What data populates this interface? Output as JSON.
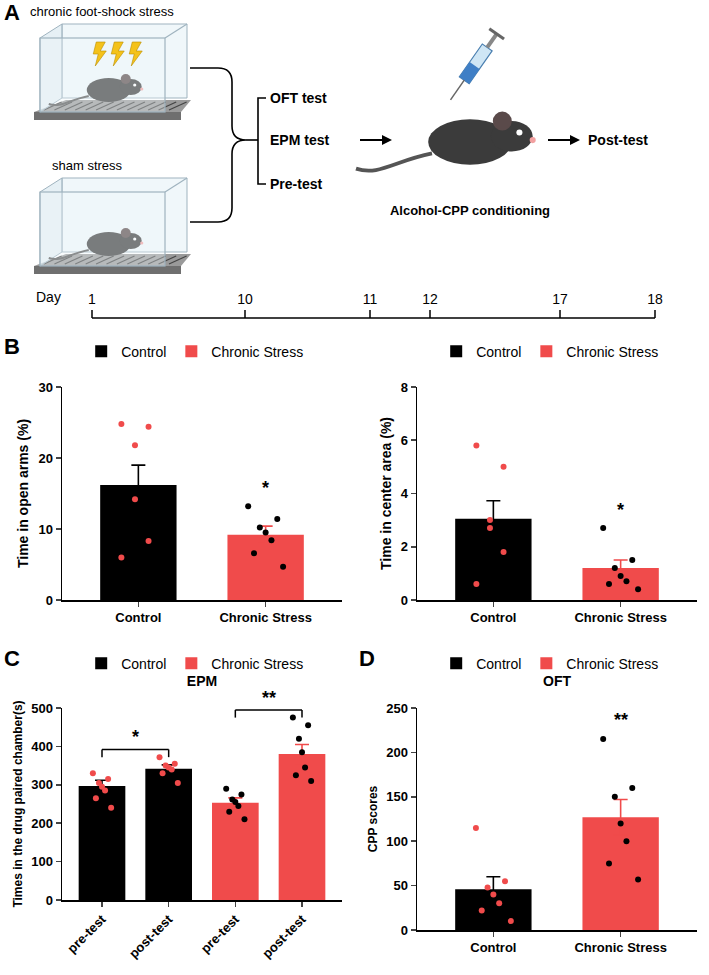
{
  "panel_labels": [
    "A",
    "B",
    "C",
    "D"
  ],
  "diagram": {
    "conditions": [
      "chronic foot-shock stress",
      "sham stress"
    ],
    "tests": [
      "OFT test",
      "EPM test",
      "Pre-test"
    ],
    "conditioning": "Alcohol-CPP conditioning",
    "post": "Post-test",
    "timeline": {
      "label": "Day",
      "ticks": [
        1,
        10,
        11,
        12,
        17,
        18
      ]
    }
  },
  "chart_data": [
    {
      "type": "bar",
      "y_label": "Time in open arms (%)",
      "categories": [
        "Control",
        "Chronic Stress"
      ],
      "series": [
        {
          "name": "Control",
          "color": "#000000",
          "values": [
            16.2,
            null
          ],
          "errors": [
            2.8,
            null
          ],
          "points": [
            [
              24.8,
              24.4,
              21.8,
              14.2,
              8.3,
              6.0
            ],
            null
          ]
        },
        {
          "name": "Chronic Stress",
          "color": "#f04b4b",
          "values": [
            null,
            9.2
          ],
          "errors": [
            null,
            1.2
          ],
          "points": [
            null,
            [
              13.2,
              11.4,
              10.2,
              9.5,
              8.4,
              6.6,
              4.7
            ]
          ]
        }
      ],
      "ylim": [
        0,
        30
      ],
      "yticks": [
        0,
        10,
        20,
        30
      ],
      "grid": false,
      "legend": "top",
      "annotations": [
        {
          "category": 1,
          "text": "*"
        }
      ]
    },
    {
      "type": "bar",
      "y_label": "Time in center area (%)",
      "categories": [
        "Control",
        "Chronic Stress"
      ],
      "series": [
        {
          "name": "Control",
          "color": "#000000",
          "values": [
            3.05,
            null
          ],
          "errors": [
            0.68,
            null
          ],
          "points": [
            [
              5.8,
              5.0,
              3.0,
              2.7,
              1.8,
              0.6
            ],
            null
          ]
        },
        {
          "name": "Chronic Stress",
          "color": "#f04b4b",
          "values": [
            null,
            1.2
          ],
          "errors": [
            null,
            0.3
          ],
          "points": [
            null,
            [
              2.7,
              1.5,
              1.2,
              0.9,
              0.7,
              0.6,
              0.4
            ]
          ]
        }
      ],
      "ylim": [
        0,
        8
      ],
      "yticks": [
        0,
        2,
        4,
        6,
        8
      ],
      "grid": false,
      "legend": "top",
      "annotations": [
        {
          "category": 1,
          "text": "*"
        }
      ]
    },
    {
      "type": "bar",
      "title": "EPM",
      "y_label": "Times in the drug paired chamber(s)",
      "categories": [
        "pre-test",
        "post-test",
        "pre-test",
        "post-test"
      ],
      "series": [
        {
          "name": "Control",
          "color": "#000000",
          "values": [
            297,
            342,
            null,
            null
          ],
          "errors": [
            15,
            10,
            null,
            null
          ],
          "points": [
            [
              330,
              315,
              305,
              295,
              285,
              265,
              240
            ],
            [
              372,
              355,
              350,
              345,
              340,
              330,
              305
            ],
            null,
            null
          ]
        },
        {
          "name": "Chronic Stress",
          "color": "#f04b4b",
          "values": [
            null,
            null,
            253,
            380
          ],
          "errors": [
            null,
            null,
            13,
            25
          ],
          "points": [
            null,
            null,
            [
              290,
              275,
              262,
              255,
              245,
              230,
              210
            ],
            [
              475,
              455,
              420,
              385,
              345,
              325,
              310
            ]
          ]
        }
      ],
      "ylim": [
        0,
        500
      ],
      "yticks": [
        0,
        100,
        200,
        300,
        400,
        500
      ],
      "grid": false,
      "legend": "top",
      "brackets": [
        {
          "from": 0,
          "to": 1,
          "text": "*"
        },
        {
          "from": 2,
          "to": 3,
          "text": "**"
        }
      ]
    },
    {
      "type": "bar",
      "title": "OFT",
      "y_label": "CPP scores",
      "categories": [
        "Control",
        "Chronic Stress"
      ],
      "series": [
        {
          "name": "Control",
          "color": "#000000",
          "values": [
            46,
            null
          ],
          "errors": [
            14,
            null
          ],
          "points": [
            [
              115,
              55,
              48,
              40,
              30,
              22,
              10
            ],
            null
          ]
        },
        {
          "name": "Chronic Stress",
          "color": "#f04b4b",
          "values": [
            null,
            127
          ],
          "errors": [
            null,
            20
          ],
          "points": [
            null,
            [
              215,
              160,
              150,
              120,
              100,
              75,
              57
            ]
          ]
        }
      ],
      "ylim": [
        0,
        250
      ],
      "yticks": [
        0,
        50,
        100,
        150,
        200,
        250
      ],
      "grid": false,
      "legend": "top",
      "annotations": [
        {
          "category": 1,
          "text": "**"
        }
      ]
    }
  ]
}
